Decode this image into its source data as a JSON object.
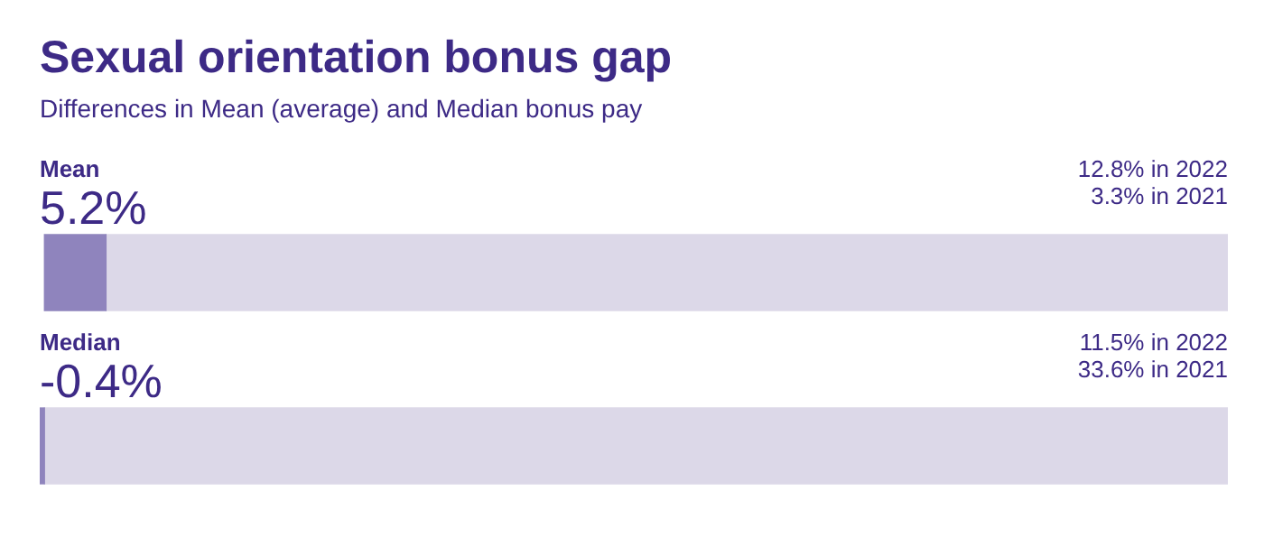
{
  "chart_data": {
    "type": "bar",
    "orientation": "horizontal",
    "title": "Sexual orientation bonus gap",
    "subtitle": "Differences in Mean (average) and Median bonus pay",
    "categories": [
      "Mean",
      "Median"
    ],
    "series": [
      {
        "color": "#8f84bd",
        "values": [
          5.2,
          -0.4
        ],
        "value_labels": [
          "5.2%",
          "-0.4%"
        ]
      },
      {
        "color": "#dcd8e8",
        "values": [
          94.8,
          100
        ]
      }
    ],
    "stacked": true,
    "tick_labels": false,
    "legend": false,
    "annotations": [
      "12.8% in 2022",
      "3.3% in 2021",
      "11.5% in 2022",
      "33.6% in 2021"
    ]
  }
}
